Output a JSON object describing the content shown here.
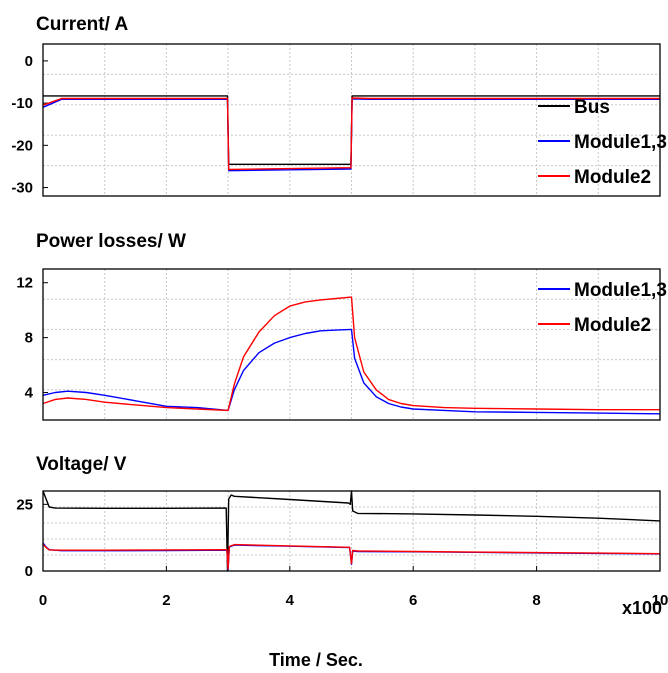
{
  "chart_data": [
    {
      "type": "line",
      "title": "Current/ A",
      "ylim": [
        -32,
        4
      ],
      "yticks": [
        0,
        -10,
        -20,
        -30
      ],
      "xlim": [
        0,
        10
      ],
      "grid": true,
      "legend_position": "right",
      "series": [
        {
          "name": "Bus",
          "color": "#000000",
          "x": [
            0,
            2.99,
            3.01,
            4.99,
            5.01,
            10
          ],
          "y": [
            -8.3,
            -8.3,
            -24.5,
            -24.5,
            -8.3,
            -8.3
          ]
        },
        {
          "name": "Module1,3",
          "color": "#0000ff",
          "x": [
            0,
            0.3,
            2.99,
            3.01,
            4.0,
            4.99,
            5.01,
            5.3,
            10
          ],
          "y": [
            -11.0,
            -9.1,
            -9.1,
            -26.0,
            -25.8,
            -25.6,
            -9.0,
            -9.1,
            -9.1
          ]
        },
        {
          "name": "Module2",
          "color": "#ff0000",
          "x": [
            0,
            0.3,
            2.99,
            3.01,
            4.0,
            4.99,
            5.01,
            5.3,
            10
          ],
          "y": [
            -10.5,
            -8.9,
            -8.9,
            -25.7,
            -25.5,
            -25.3,
            -8.8,
            -8.9,
            -8.9
          ]
        }
      ]
    },
    {
      "type": "line",
      "title": "Power losses/ W",
      "ylim": [
        2,
        13
      ],
      "yticks": [
        4,
        8,
        12
      ],
      "xlim": [
        0,
        10
      ],
      "grid": true,
      "legend_position": "top-right",
      "series": [
        {
          "name": "Module1,3",
          "color": "#0000ff",
          "x": [
            0,
            0.2,
            0.4,
            0.7,
            1.0,
            1.5,
            2.0,
            2.5,
            3.0,
            3.1,
            3.25,
            3.5,
            3.75,
            4.0,
            4.25,
            4.5,
            4.75,
            5.0,
            5.05,
            5.2,
            5.4,
            5.6,
            5.8,
            6.0,
            6.5,
            7.0,
            8.0,
            9.0,
            10.0
          ],
          "y": [
            3.8,
            4.0,
            4.1,
            4.0,
            3.8,
            3.4,
            3.0,
            2.9,
            2.7,
            4.2,
            5.6,
            6.9,
            7.6,
            8.0,
            8.3,
            8.5,
            8.55,
            8.6,
            6.5,
            4.7,
            3.7,
            3.2,
            2.95,
            2.8,
            2.7,
            2.6,
            2.55,
            2.5,
            2.45
          ]
        },
        {
          "name": "Module2",
          "color": "#ff0000",
          "x": [
            0,
            0.2,
            0.4,
            0.7,
            1.0,
            1.5,
            2.0,
            2.5,
            3.0,
            3.1,
            3.25,
            3.5,
            3.75,
            4.0,
            4.25,
            4.5,
            4.75,
            5.0,
            5.05,
            5.2,
            5.4,
            5.6,
            5.8,
            6.0,
            6.5,
            7.0,
            8.0,
            9.0,
            10.0
          ],
          "y": [
            3.2,
            3.5,
            3.6,
            3.5,
            3.3,
            3.1,
            2.9,
            2.8,
            2.7,
            4.6,
            6.6,
            8.4,
            9.6,
            10.3,
            10.6,
            10.75,
            10.85,
            10.95,
            8.0,
            5.5,
            4.2,
            3.5,
            3.2,
            3.05,
            2.9,
            2.85,
            2.8,
            2.75,
            2.75
          ]
        }
      ]
    },
    {
      "type": "line",
      "title": "Voltage/ V",
      "ylim": [
        0,
        30
      ],
      "yticks": [
        25,
        0
      ],
      "xlim": [
        0,
        10
      ],
      "xticks": [
        0,
        2,
        4,
        6,
        8,
        10
      ],
      "grid": true,
      "series": [
        {
          "name": "Bus",
          "color": "#000000",
          "x": [
            0,
            0.05,
            0.1,
            0.2,
            1.0,
            2.0,
            2.97,
            2.99,
            3.01,
            3.05,
            3.1,
            4.0,
            4.95,
            4.98,
            5.0,
            5.02,
            5.1,
            6.0,
            7.0,
            8.0,
            9.0,
            10.0
          ],
          "y": [
            30,
            27,
            24,
            23.6,
            23.5,
            23.5,
            23.6,
            0,
            27,
            28.5,
            28.0,
            26.8,
            25.5,
            25.0,
            30,
            22.5,
            21.6,
            21.4,
            21.0,
            20.5,
            19.8,
            18.8
          ]
        },
        {
          "name": "Module1,3",
          "color": "#0000ff",
          "x": [
            0,
            0.05,
            0.1,
            0.3,
            1.0,
            2.0,
            2.98,
            3.0,
            3.02,
            3.1,
            4.0,
            4.97,
            5.0,
            5.02,
            5.1,
            6.0,
            7.0,
            8.0,
            9.0,
            10.0
          ],
          "y": [
            10.5,
            9.0,
            8.0,
            7.6,
            7.6,
            7.7,
            7.8,
            0.5,
            9.0,
            9.7,
            9.3,
            8.8,
            2.5,
            7.5,
            7.3,
            7.2,
            7.0,
            6.8,
            6.6,
            6.4
          ]
        },
        {
          "name": "Module2",
          "color": "#ff0000",
          "x": [
            0,
            0.05,
            0.1,
            0.3,
            1.0,
            2.0,
            2.98,
            3.0,
            3.02,
            3.1,
            4.0,
            4.97,
            5.0,
            5.02,
            5.1,
            6.0,
            7.0,
            8.0,
            9.0,
            10.0
          ],
          "y": [
            10.0,
            8.8,
            7.9,
            7.8,
            7.8,
            7.9,
            8.0,
            0.8,
            9.2,
            9.9,
            9.4,
            8.9,
            2.8,
            7.7,
            7.5,
            7.3,
            7.1,
            6.9,
            6.7,
            6.5
          ]
        }
      ]
    }
  ],
  "x_multiplier_label": "x100",
  "x_axis_label": "Time / Sec."
}
